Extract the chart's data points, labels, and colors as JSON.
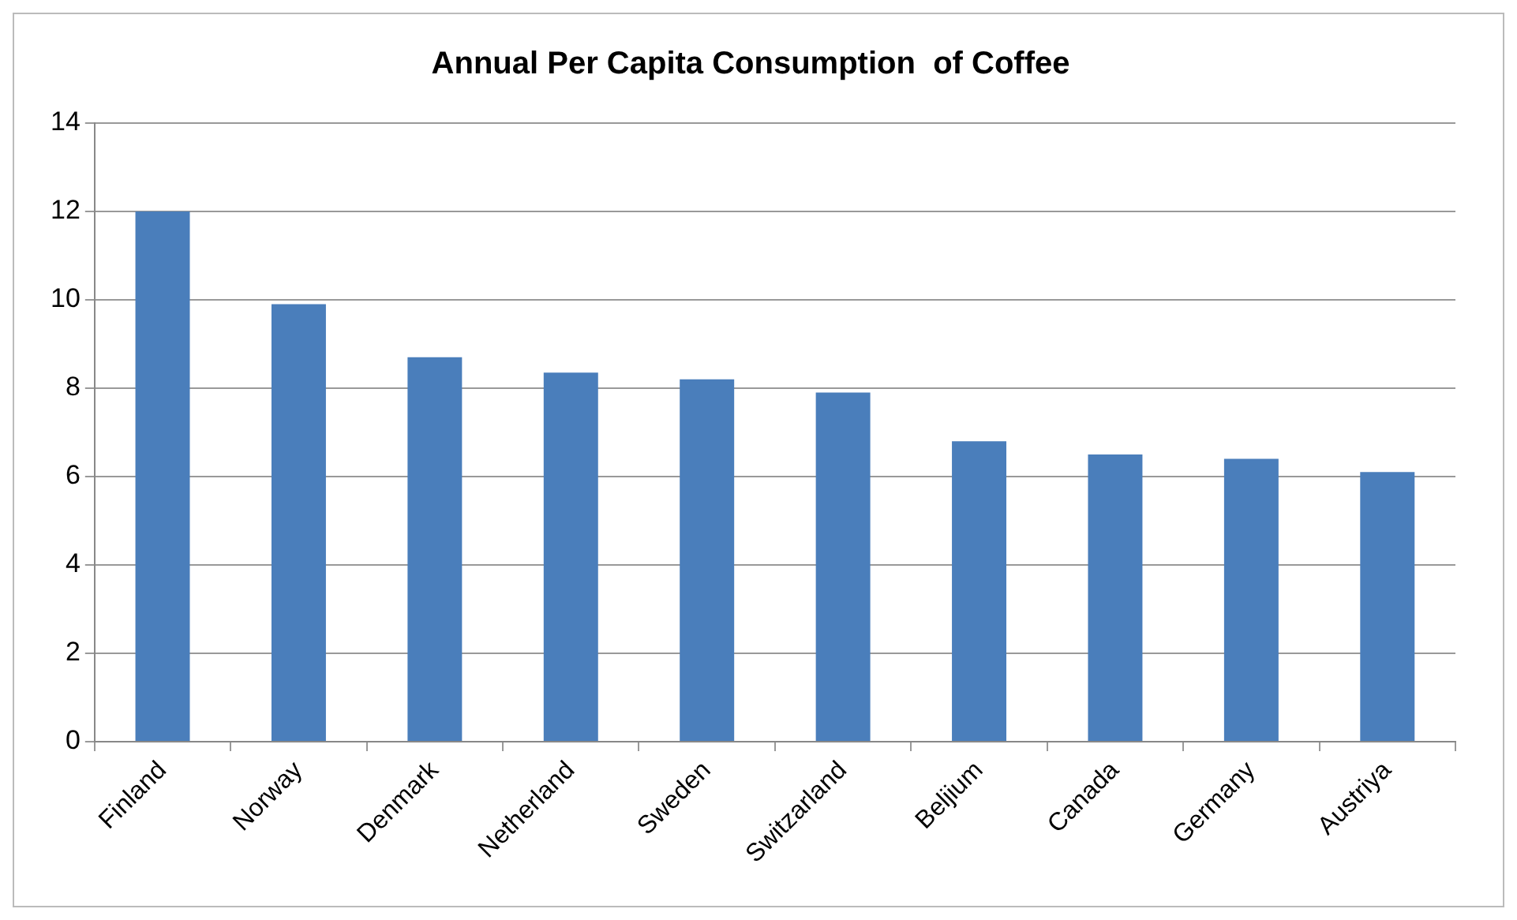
{
  "chart_data": {
    "type": "bar",
    "title": "Annual Per Capita Consumption  of Coffee",
    "categories": [
      "Finland",
      "Norway",
      "Denmark",
      "Netherland",
      "Sweden",
      "Switzarland",
      "Beljium",
      "Canada",
      "Germany",
      "Austriya"
    ],
    "values": [
      12.0,
      9.9,
      8.7,
      8.35,
      8.2,
      7.9,
      6.8,
      6.5,
      6.4,
      6.1
    ],
    "color": "#4a7ebb",
    "ylim": [
      0,
      14
    ],
    "yticks": [
      0,
      2,
      4,
      6,
      8,
      10,
      12,
      14
    ],
    "grid": "y"
  }
}
